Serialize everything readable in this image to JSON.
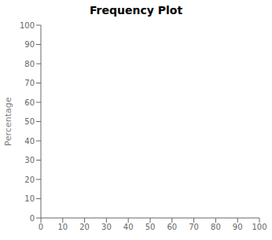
{
  "chart_data": {
    "type": "line",
    "title": "Frequency Plot",
    "ylabel": "Percentage",
    "xlim": [
      0,
      100
    ],
    "ylim": [
      0,
      100
    ],
    "xticks": [
      0,
      10,
      20,
      30,
      40,
      50,
      60,
      70,
      80,
      90,
      100
    ],
    "yticks": [
      0,
      10,
      20,
      30,
      40,
      50,
      60,
      70,
      80,
      90,
      100
    ],
    "grid": false
  }
}
